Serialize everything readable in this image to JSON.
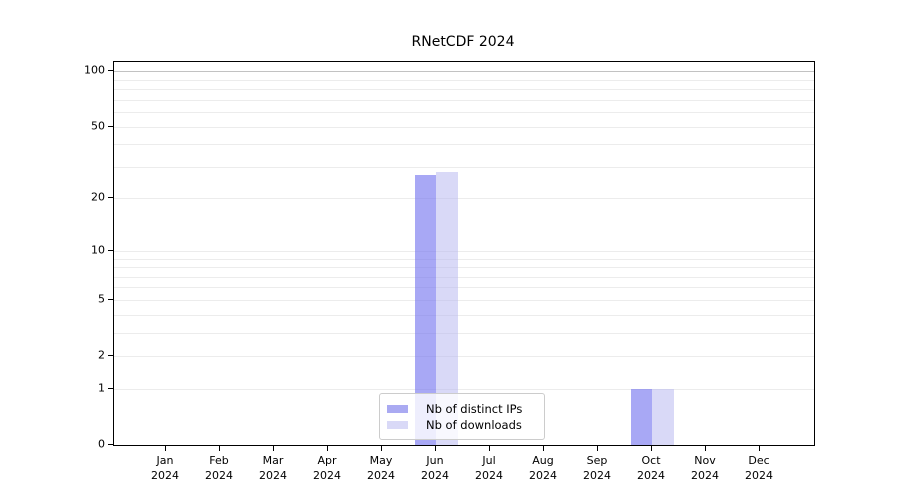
{
  "chart_data": {
    "type": "bar",
    "title": "RNetCDF 2024",
    "categories": [
      "Jan",
      "Feb",
      "Mar",
      "Apr",
      "May",
      "Jun",
      "Jul",
      "Aug",
      "Sep",
      "Oct",
      "Nov",
      "Dec"
    ],
    "category_year": "2024",
    "series": [
      {
        "name": "Nb of distinct IPs",
        "color": "rgba(122,122,240,0.65)",
        "swatch_color": "#aaaaf2",
        "values": [
          0,
          0,
          0,
          0,
          0,
          27,
          0,
          0,
          0,
          1,
          0,
          0
        ]
      },
      {
        "name": "Nb of downloads",
        "color": "rgba(186,186,240,0.55)",
        "swatch_color": "#d9d9f7",
        "values": [
          0,
          0,
          0,
          0,
          0,
          28,
          0,
          0,
          0,
          1,
          0,
          0
        ]
      }
    ],
    "yscale": "log1p",
    "ylim": [
      0,
      112
    ],
    "yticks": [
      0,
      1,
      2,
      5,
      10,
      20,
      50,
      100
    ],
    "minor_gridlines": [
      3,
      4,
      6,
      7,
      8,
      9,
      30,
      40,
      60,
      70,
      80,
      90
    ],
    "emphasized_gridline": 100,
    "grid_minor_color": "#ececec",
    "grid_major_color": "#c2c2c2",
    "legend_position": "bottom-center",
    "grid": true
  }
}
